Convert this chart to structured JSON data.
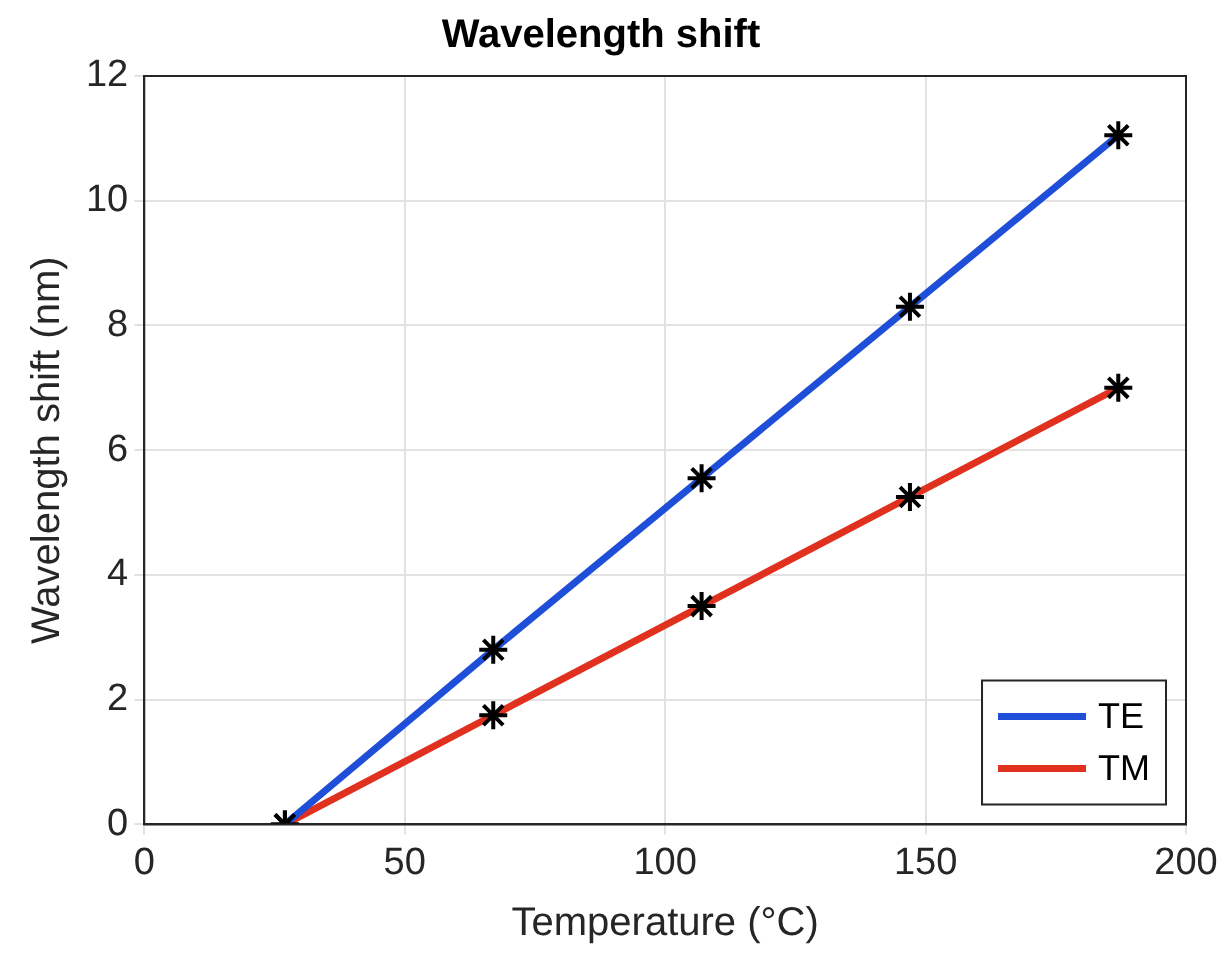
{
  "chart_data": {
    "type": "line",
    "title": "Wavelength shift",
    "xlabel": "Temperature (°C)",
    "ylabel": "Wavelength shift (nm)",
    "x": [
      27,
      67,
      107,
      147,
      187
    ],
    "series": [
      {
        "name": "TE",
        "color": "#1f4fd8",
        "values": [
          0,
          2.8,
          5.55,
          8.3,
          11.05
        ]
      },
      {
        "name": "TM",
        "color": "#e0301e",
        "values": [
          0,
          1.75,
          3.5,
          5.25,
          7.0
        ]
      }
    ],
    "xlim": [
      0,
      200
    ],
    "xticks": [
      0,
      50,
      100,
      150,
      200
    ],
    "ylim": [
      0,
      12
    ],
    "yticks": [
      0,
      2,
      4,
      6,
      8,
      10,
      12
    ],
    "grid": true,
    "legend": "bottom right",
    "marker": "cross",
    "line_style": "solid"
  }
}
